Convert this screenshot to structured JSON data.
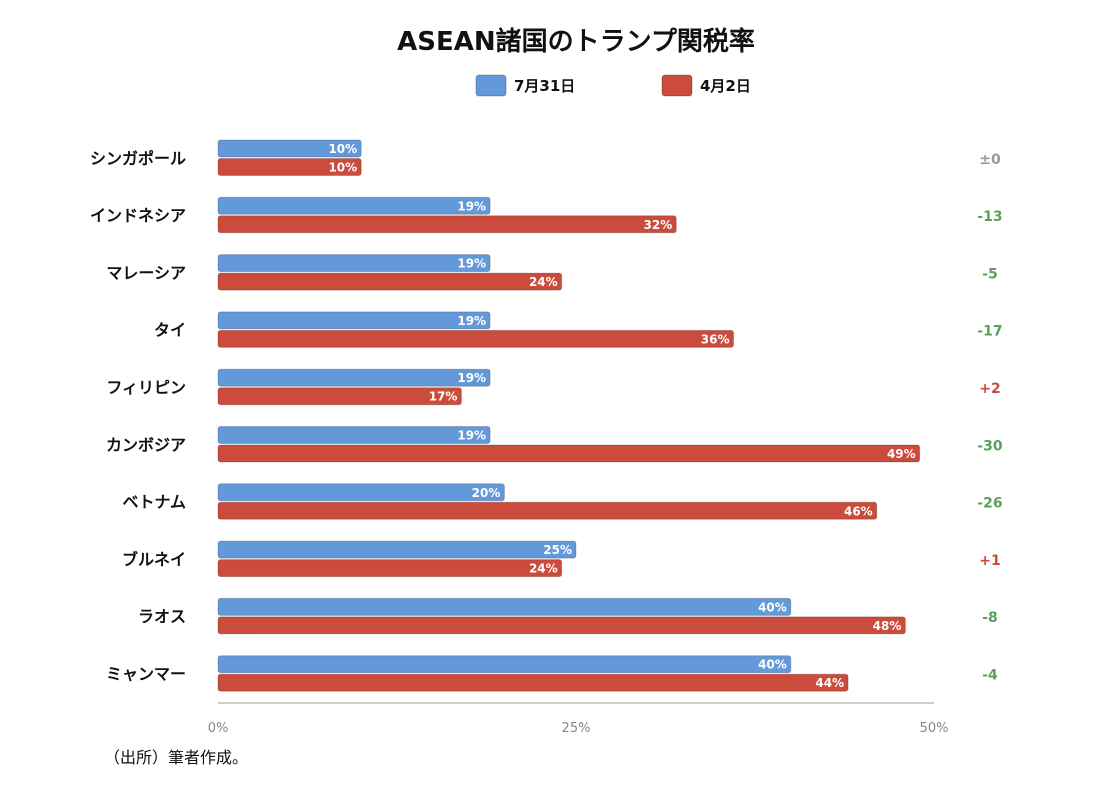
{
  "chart_data": {
    "type": "bar",
    "orientation": "horizontal",
    "title": "ASEAN諸国のトランプ関税率",
    "categories": [
      "シンガポール",
      "インドネシア",
      "マレーシア",
      "タイ",
      "フィリピン",
      "カンボジア",
      "ベトナム",
      "ブルネイ",
      "ラオス",
      "ミャンマー"
    ],
    "series": [
      {
        "name": "7月31日",
        "color": "#6499d9",
        "values": [
          10,
          19,
          19,
          19,
          19,
          19,
          20,
          25,
          40,
          40
        ]
      },
      {
        "name": "4月2日",
        "color": "#cb4b3c",
        "values": [
          10,
          32,
          24,
          36,
          17,
          49,
          46,
          24,
          48,
          44
        ]
      }
    ],
    "value_labels": {
      "7月31日": [
        "10%",
        "19%",
        "19%",
        "19%",
        "19%",
        "19%",
        "20%",
        "25%",
        "40%",
        "40%"
      ],
      "4月2日": [
        "10%",
        "32%",
        "24%",
        "36%",
        "17%",
        "49%",
        "46%",
        "24%",
        "48%",
        "44%"
      ]
    },
    "differences": [
      "±0",
      "-13",
      "-5",
      "-17",
      "+2",
      "-30",
      "-26",
      "+1",
      "-8",
      "-4"
    ],
    "difference_colors": {
      "neutral": "#999999",
      "decrease": "#5aa05a",
      "increase": "#cb4b3c"
    },
    "xlim": [
      0,
      50
    ],
    "xticks": [
      "0%",
      "25%",
      "50%"
    ],
    "xtick_values": [
      0,
      25,
      50
    ],
    "legend_position": "top",
    "grid": false,
    "source_note": "（出所）筆者作成。"
  }
}
